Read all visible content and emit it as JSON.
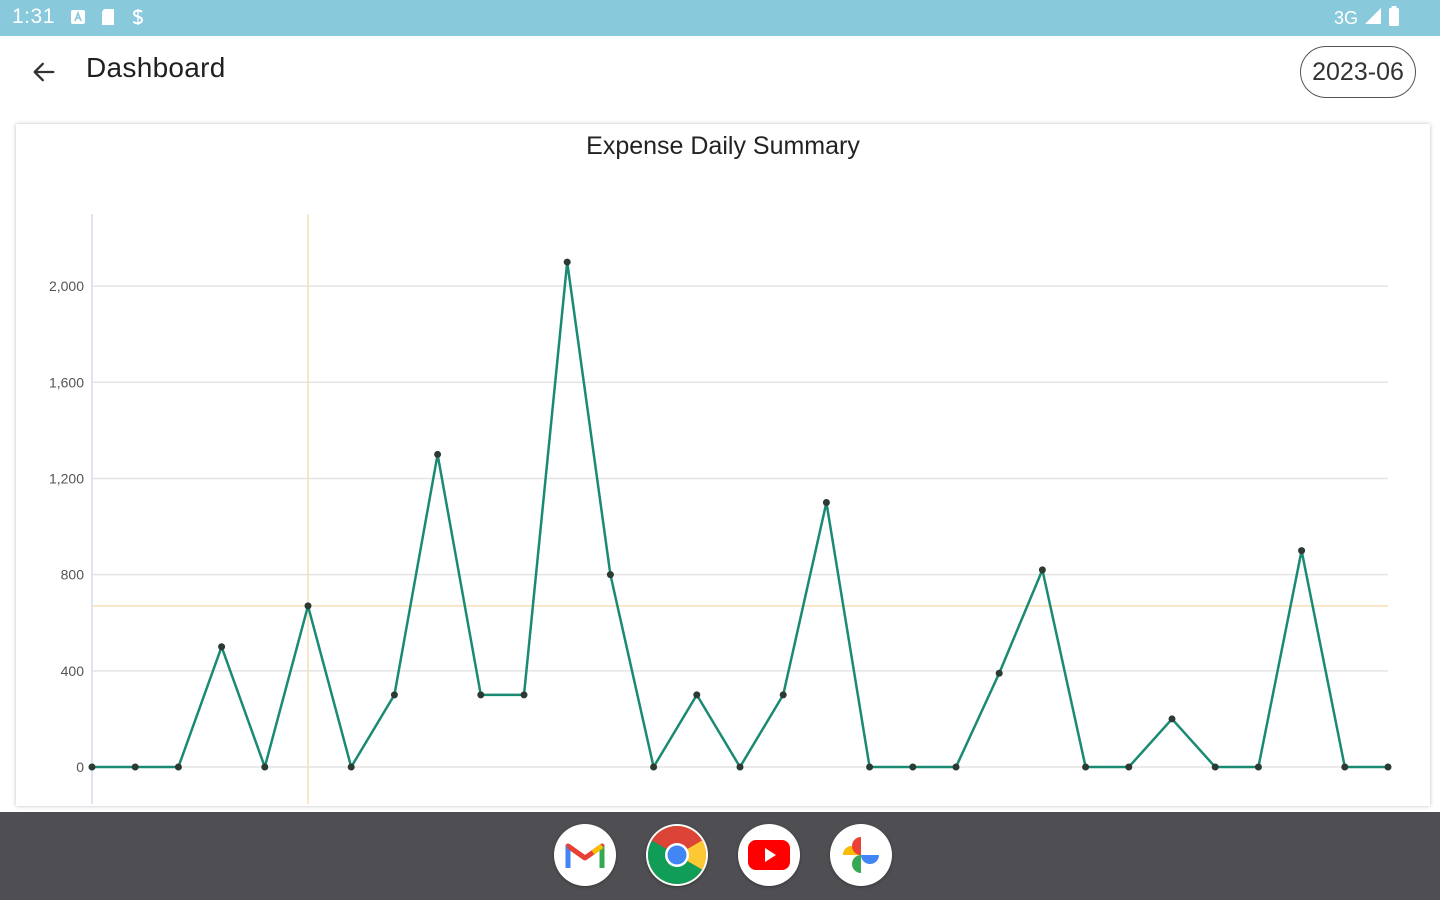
{
  "status_bar": {
    "time": "1:31",
    "network": "3G",
    "icons": [
      "a-icon",
      "sd-card-icon",
      "s-icon",
      "signal-icon",
      "battery-icon"
    ]
  },
  "header": {
    "title": "Dashboard",
    "month_chip": "2023-06",
    "back_icon": "arrow-back-icon"
  },
  "chart_data": {
    "type": "line",
    "title": "Expense Daily Summary",
    "xlabel": "",
    "ylabel": "",
    "ylim": [
      0,
      2300
    ],
    "yticks": [
      0,
      400,
      800,
      1200,
      1600,
      2000
    ],
    "ytick_labels": [
      "0",
      "400",
      "800",
      "1,200",
      "1,600",
      "2,000"
    ],
    "x": [
      1,
      2,
      3,
      4,
      5,
      6,
      7,
      8,
      9,
      10,
      11,
      12,
      13,
      14,
      15,
      16,
      17,
      18,
      19,
      20,
      21,
      22,
      23,
      24,
      25,
      26,
      27,
      28,
      29,
      30,
      31
    ],
    "series": [
      {
        "name": "",
        "color": "#1a8a72",
        "values": [
          0,
          0,
          0,
          500,
          0,
          670,
          0,
          300,
          1300,
          300,
          300,
          2100,
          800,
          0,
          300,
          0,
          300,
          1100,
          0,
          0,
          0,
          390,
          820,
          0,
          0,
          200,
          0,
          0,
          900,
          0,
          0
        ]
      }
    ],
    "average_line": 670,
    "highlight_x": 6,
    "grid": true
  },
  "dock": {
    "apps": [
      "gmail-icon",
      "chrome-icon",
      "youtube-icon",
      "photos-icon"
    ]
  },
  "colors": {
    "status_bar": "#88c9dc",
    "line": "#1a8a72",
    "crosshair": "#f5dfb8",
    "taskbar": "#4f4f53"
  }
}
